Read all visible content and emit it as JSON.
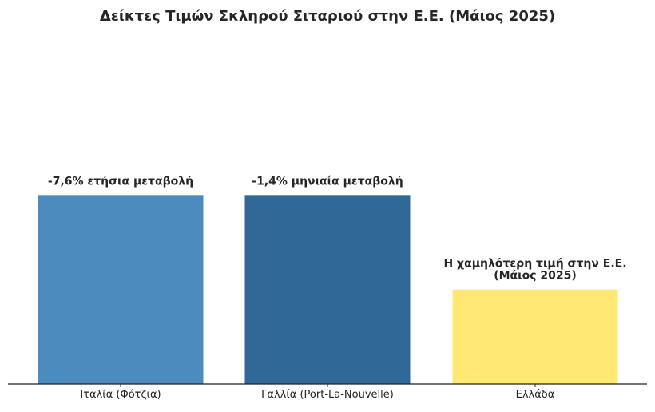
{
  "chart_data": {
    "type": "bar",
    "title": "Δείκτες Τιμών Σκληρού Σιταριού στην Ε.Ε. (Μάιος 2025)",
    "xlabel": "",
    "ylabel": "",
    "categories": [
      "Ιταλία (Φότζια)",
      "Γαλλία (Port-La-Nouvelle)",
      "Ελλάδα"
    ],
    "values": [
      1.0,
      1.0,
      0.5
    ],
    "ylim": [
      0,
      1.8
    ],
    "grid": false,
    "annotations": [
      [
        "-7,6% ετήσια μεταβολή"
      ],
      [
        "-1,4% μηνιαία μεταβολή"
      ],
      [
        "Η χαμηλότερη τιμή στην Ε.Ε.",
        "(Μάιος 2025)"
      ]
    ],
    "colors": [
      "#4b8bbe",
      "#306998",
      "#ffe873"
    ]
  }
}
